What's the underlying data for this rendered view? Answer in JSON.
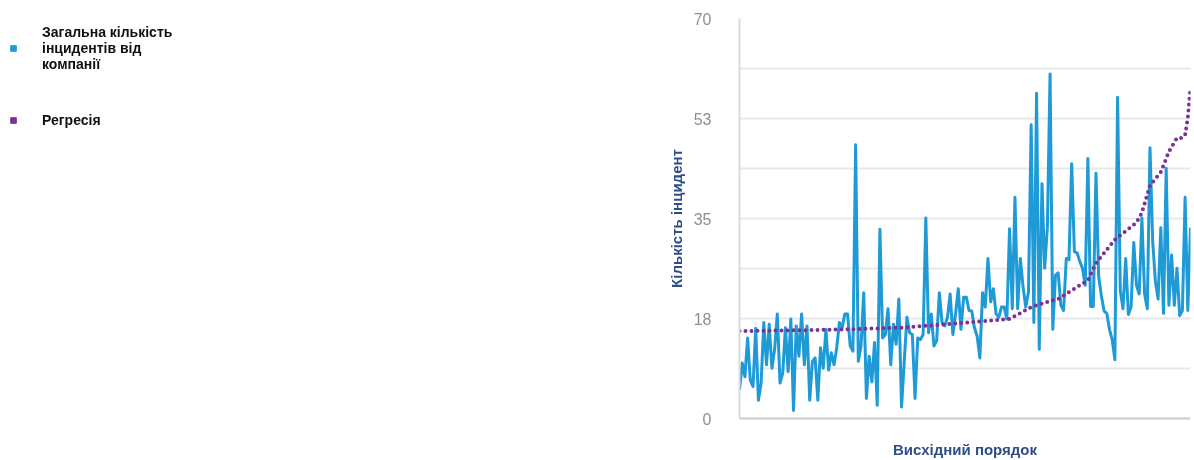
{
  "chart_data": {
    "type": "line",
    "xlabel": "Висхідний порядок",
    "ylabel": "Кількість інцидент",
    "categories": [
      null,
      null,
      null,
      null,
      null,
      null,
      null,
      null,
      null,
      null,
      null,
      null,
      null,
      null,
      null,
      null,
      null,
      null,
      null,
      null,
      null,
      null,
      null,
      null,
      null,
      null,
      null,
      null,
      null,
      null,
      null,
      null,
      null,
      null,
      null,
      null,
      null,
      null,
      null,
      null,
      null,
      null,
      null,
      null,
      null,
      null,
      null,
      null,
      null,
      null,
      null,
      null,
      null,
      null,
      null,
      null,
      null,
      null,
      null,
      null,
      null,
      null,
      null,
      null,
      null,
      null,
      null,
      null,
      null,
      null,
      null,
      null,
      null,
      null,
      null,
      null,
      null,
      null,
      null,
      null,
      null,
      null,
      null,
      null,
      null,
      null,
      null,
      null,
      null,
      null,
      null,
      null,
      null,
      null,
      null,
      null,
      null,
      null,
      null,
      null,
      null,
      null,
      null,
      null,
      null,
      null,
      null,
      null,
      null,
      null,
      null,
      null,
      null,
      null,
      null,
      null,
      null,
      null,
      null,
      null,
      null,
      null,
      null,
      null,
      null,
      null,
      null,
      null,
      null,
      null,
      null,
      null,
      null,
      null,
      null,
      null,
      null,
      null,
      null,
      null,
      null,
      null,
      null,
      null,
      null,
      null,
      null,
      null,
      null,
      null,
      null,
      null,
      null,
      null,
      null,
      null,
      null,
      null,
      null,
      null,
      null,
      null,
      null,
      null,
      null,
      null,
      null,
      null
    ],
    "series": [
      {
        "name": "Загальна кількість інцидентів від компанії",
        "color": "#1e9ad6",
        "values": [
          5.0,
          9.7,
          7.3,
          14.1,
          6.7,
          5.6,
          15.8,
          3.2,
          6.2,
          16.8,
          9.4,
          16.5,
          8.8,
          12.1,
          18.3,
          6.2,
          7.9,
          15.9,
          8.2,
          17.4,
          1.4,
          16.2,
          10.9,
          18.3,
          9.4,
          16.2,
          3.2,
          10.0,
          10.6,
          3.2,
          12.4,
          8.8,
          15.6,
          8.5,
          11.5,
          9.4,
          12.4,
          16.8,
          15.9,
          18.3,
          18.3,
          12.7,
          11.8,
          47.9,
          10.0,
          12.7,
          22.0,
          3.5,
          10.9,
          6.4,
          13.3,
          2.3,
          33.1,
          14.1,
          14.7,
          19.2,
          9.4,
          16.5,
          13.0,
          20.9,
          2.0,
          10.0,
          17.7,
          15.0,
          14.7,
          3.5,
          14.1,
          13.8,
          14.7,
          35.1,
          15.0,
          18.3,
          12.7,
          13.6,
          22.0,
          16.8,
          16.2,
          17.7,
          21.8,
          14.7,
          18.3,
          22.7,
          15.6,
          21.2,
          21.2,
          18.9,
          18.8,
          15.9,
          14.4,
          10.6,
          22.0,
          19.5,
          28.0,
          20.4,
          22.7,
          18.3,
          17.7,
          19.5,
          19.5,
          17.4,
          33.2,
          19.2,
          38.7,
          19.2,
          28.0,
          23.0,
          19.5,
          22.1,
          51.4,
          16.8,
          56.9,
          12.1,
          41.1,
          26.3,
          33.4,
          60.3,
          15.6,
          25.1,
          25.5,
          19.8,
          18.9,
          28.0,
          27.8,
          44.6,
          29.2,
          29.0,
          27.5,
          26.3,
          23.3,
          45.5,
          19.6,
          19.6,
          42.9,
          24.8,
          21.5,
          18.8,
          18.4,
          15.6,
          13.8,
          10.3,
          56.2,
          22.4,
          19.2,
          28.0,
          18.2,
          19.5,
          30.8,
          23.3,
          21.8,
          35.1,
          21.8,
          19.2,
          47.4,
          31.0,
          24.0,
          20.9,
          33.4,
          18.4,
          43.8,
          19.8,
          28.6,
          19.8,
          26.3,
          18.0,
          18.9,
          38.7,
          18.9,
          33.4
        ]
      },
      {
        "name": "Регресія",
        "color": "#7b3294",
        "line_style": "dotted",
        "values": [
          15.3,
          null,
          null,
          null,
          null,
          null,
          null,
          null,
          null,
          null,
          null,
          null,
          null,
          null,
          null,
          null,
          null,
          null,
          null,
          null,
          null,
          null,
          null,
          null,
          null,
          null,
          null,
          null,
          null,
          null,
          15.5,
          null,
          null,
          null,
          null,
          null,
          null,
          null,
          null,
          null,
          15.6,
          null,
          null,
          null,
          null,
          null,
          null,
          null,
          null,
          null,
          null,
          null,
          null,
          null,
          null,
          null,
          null,
          null,
          null,
          null,
          15.9,
          null,
          null,
          null,
          null,
          null,
          null,
          null,
          null,
          null,
          null,
          null,
          null,
          null,
          null,
          null,
          null,
          16.5,
          null,
          null,
          null,
          null,
          null,
          null,
          null,
          null,
          null,
          null,
          null,
          null,
          null,
          null,
          null,
          null,
          null,
          null,
          null,
          null,
          null,
          null,
          17.4,
          null,
          null,
          null,
          null,
          null,
          null,
          null,
          19.5,
          null,
          null,
          null,
          null,
          null,
          null,
          null,
          20.7,
          null,
          20.9,
          null,
          null,
          null,
          null,
          null,
          null,
          null,
          null,
          null,
          null,
          24.2,
          null,
          null,
          27.2,
          null,
          null,
          null,
          null,
          null,
          null,
          31.3,
          null,
          null,
          null,
          null,
          null,
          null,
          null,
          34.3,
          null,
          36.0,
          null,
          null,
          40.8,
          null,
          null,
          null,
          43.1,
          null,
          null,
          46.7,
          null,
          null,
          49.1,
          null,
          49.1,
          49.6,
          52.6,
          57.9
        ]
      }
    ],
    "ylim": [
      0,
      70
    ],
    "yticks": [
      0,
      {
        "value": 8.75,
        "label": null
      },
      {
        "value": 17.5,
        "label": "18"
      },
      {
        "value": 26.25,
        "label": null
      },
      {
        "value": 35,
        "label": "35"
      },
      {
        "value": 43.75,
        "label": null
      },
      {
        "value": 52.5,
        "label": "53"
      },
      {
        "value": 61.25,
        "label": null
      },
      70
    ],
    "grid": "y",
    "legend": "left",
    "tick_labels": "y",
    "line_style": "solid"
  }
}
